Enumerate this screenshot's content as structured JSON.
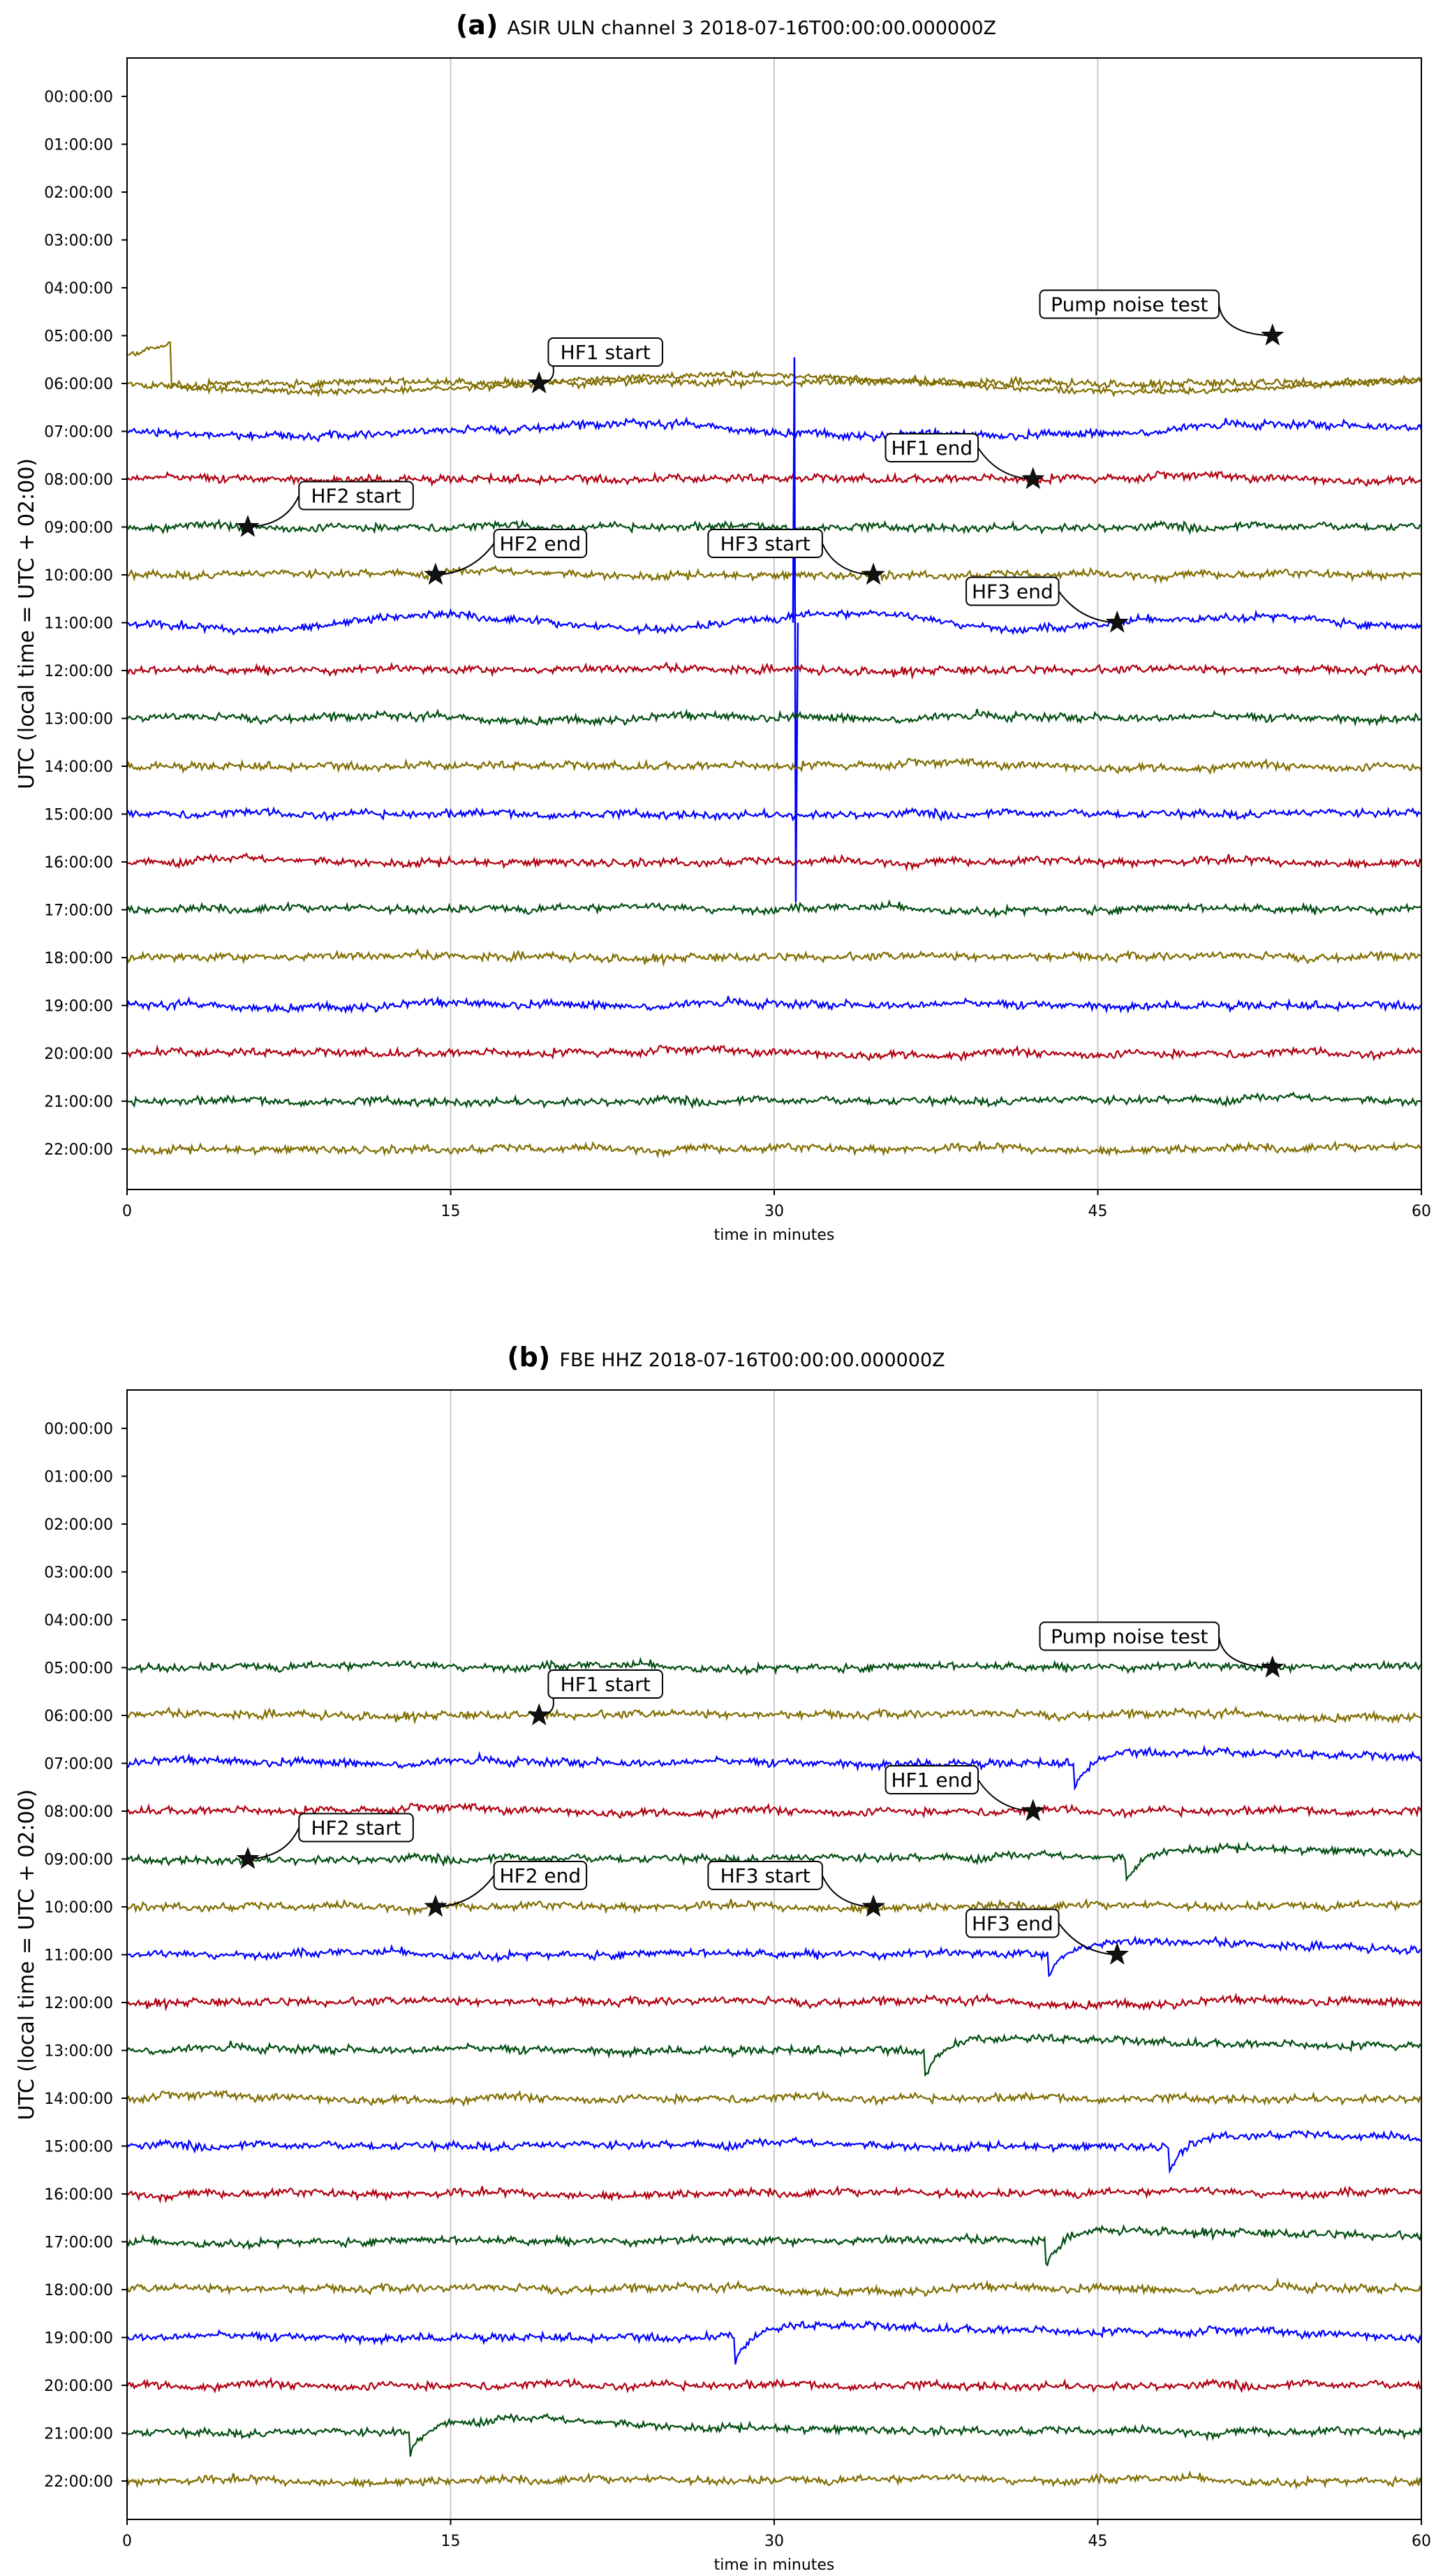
{
  "chart_data": [
    {
      "type": "line",
      "panel_letter": "(a)",
      "title": "ASIR ULN channel 3 2018-07-16T00:00:00.000000Z",
      "xlabel": "time in minutes",
      "ylabel": "UTC (local time = UTC + 02:00)",
      "xlim": [
        0,
        60
      ],
      "x_ticks": [
        "0",
        "15",
        "30",
        "45",
        "60"
      ],
      "grid": "vertical lines at 15, 30, 45",
      "y_tick_labels": [
        "00:00:00",
        "01:00:00",
        "02:00:00",
        "03:00:00",
        "04:00:00",
        "05:00:00",
        "06:00:00",
        "07:00:00",
        "08:00:00",
        "09:00:00",
        "10:00:00",
        "11:00:00",
        "12:00:00",
        "13:00:00",
        "14:00:00",
        "15:00:00",
        "16:00:00",
        "17:00:00",
        "18:00:00",
        "19:00:00",
        "20:00:00",
        "21:00:00",
        "22:00:00"
      ],
      "traces": [
        {
          "hour": 5,
          "color": "#806d00",
          "note": "starts high at 0 min and settles near 06:00 line"
        },
        {
          "hour": 6,
          "color": "#806d00"
        },
        {
          "hour": 7,
          "color": "#0000ff"
        },
        {
          "hour": 8,
          "color": "#b00010"
        },
        {
          "hour": 9,
          "color": "#004d10"
        },
        {
          "hour": 10,
          "color": "#806d00"
        },
        {
          "hour": 11,
          "color": "#0000ff",
          "spike_minute": 31
        },
        {
          "hour": 12,
          "color": "#b00010"
        },
        {
          "hour": 13,
          "color": "#004d10"
        },
        {
          "hour": 14,
          "color": "#806d00"
        },
        {
          "hour": 15,
          "color": "#0000ff"
        },
        {
          "hour": 16,
          "color": "#b00010"
        },
        {
          "hour": 17,
          "color": "#004d10"
        },
        {
          "hour": 18,
          "color": "#806d00"
        },
        {
          "hour": 19,
          "color": "#0000ff"
        },
        {
          "hour": 20,
          "color": "#b00010"
        },
        {
          "hour": 21,
          "color": "#004d10"
        },
        {
          "hour": 22,
          "color": "#806d00"
        }
      ],
      "annotations": [
        {
          "label": "HF1 start",
          "x": 19.1,
          "hour": 6
        },
        {
          "label": "HF1 end",
          "x": 42.0,
          "hour": 8
        },
        {
          "label": "HF2 start",
          "x": 5.6,
          "hour": 9
        },
        {
          "label": "HF2 end",
          "x": 14.3,
          "hour": 10
        },
        {
          "label": "HF3 start",
          "x": 34.6,
          "hour": 10
        },
        {
          "label": "HF3 end",
          "x": 45.9,
          "hour": 11
        },
        {
          "label": "Pump noise test",
          "x": 53.1,
          "hour": 5
        }
      ]
    },
    {
      "type": "line",
      "panel_letter": "(b)",
      "title": "FBE HHZ 2018-07-16T00:00:00.000000Z",
      "xlabel": "time in minutes",
      "ylabel": "UTC (local time = UTC + 02:00)",
      "xlim": [
        0,
        60
      ],
      "x_ticks": [
        "0",
        "15",
        "30",
        "45",
        "60"
      ],
      "grid": "vertical lines at 15, 30, 45",
      "y_tick_labels": [
        "00:00:00",
        "01:00:00",
        "02:00:00",
        "03:00:00",
        "04:00:00",
        "05:00:00",
        "06:00:00",
        "07:00:00",
        "08:00:00",
        "09:00:00",
        "10:00:00",
        "11:00:00",
        "12:00:00",
        "13:00:00",
        "14:00:00",
        "15:00:00",
        "16:00:00",
        "17:00:00",
        "18:00:00",
        "19:00:00",
        "20:00:00",
        "21:00:00",
        "22:00:00"
      ],
      "traces": [
        {
          "hour": 5,
          "color": "#004d10"
        },
        {
          "hour": 6,
          "color": "#806d00"
        },
        {
          "hour": 7,
          "color": "#0000ff",
          "step_minute": 43.9
        },
        {
          "hour": 8,
          "color": "#b00010"
        },
        {
          "hour": 9,
          "color": "#004d10",
          "step_minute": 46.3
        },
        {
          "hour": 10,
          "color": "#806d00"
        },
        {
          "hour": 11,
          "color": "#0000ff",
          "step_minute": 42.7
        },
        {
          "hour": 12,
          "color": "#b00010"
        },
        {
          "hour": 13,
          "color": "#004d10",
          "step_minute": 37.0
        },
        {
          "hour": 14,
          "color": "#806d00"
        },
        {
          "hour": 15,
          "color": "#0000ff",
          "step_minute": 48.3
        },
        {
          "hour": 16,
          "color": "#b00010"
        },
        {
          "hour": 17,
          "color": "#004d10",
          "step_minute": 42.6
        },
        {
          "hour": 18,
          "color": "#806d00"
        },
        {
          "hour": 19,
          "color": "#0000ff",
          "step_minute": 28.2
        },
        {
          "hour": 20,
          "color": "#b00010"
        },
        {
          "hour": 21,
          "color": "#004d10",
          "step_minute": 13.1
        },
        {
          "hour": 22,
          "color": "#806d00"
        }
      ],
      "annotations": [
        {
          "label": "HF1 start",
          "x": 19.1,
          "hour": 6
        },
        {
          "label": "HF1 end",
          "x": 42.0,
          "hour": 8
        },
        {
          "label": "HF2 start",
          "x": 5.6,
          "hour": 9
        },
        {
          "label": "HF2 end",
          "x": 14.3,
          "hour": 10
        },
        {
          "label": "HF3 start",
          "x": 34.6,
          "hour": 10
        },
        {
          "label": "HF3 end",
          "x": 45.9,
          "hour": 11
        },
        {
          "label": "Pump noise test",
          "x": 53.1,
          "hour": 5
        }
      ]
    }
  ]
}
